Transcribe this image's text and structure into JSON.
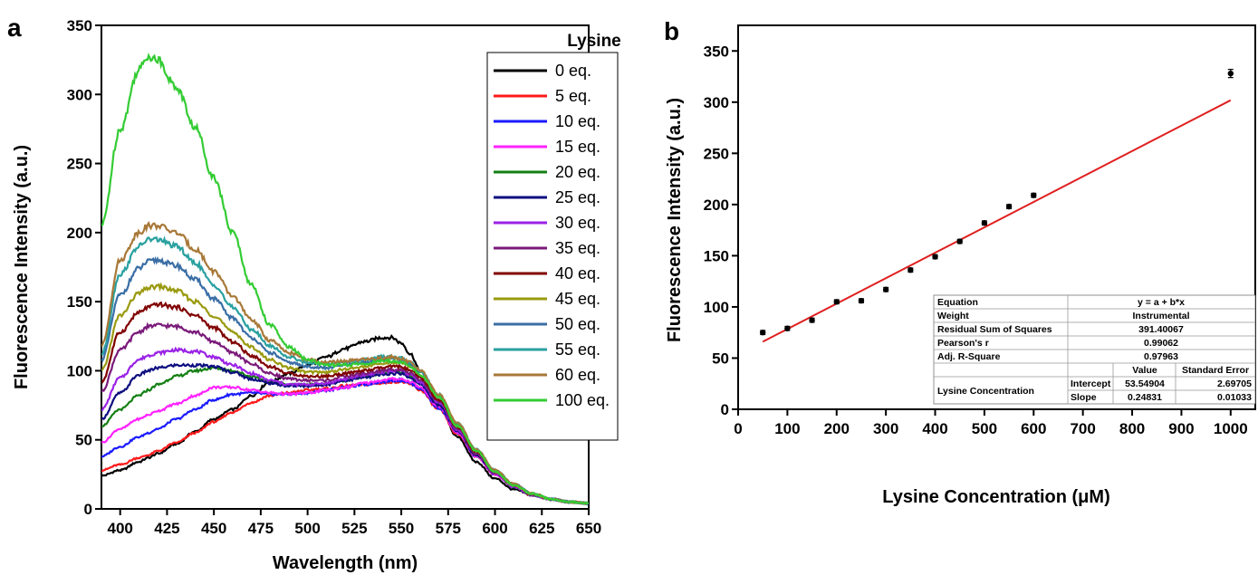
{
  "panels": {
    "a": {
      "letter": "a"
    },
    "b": {
      "letter": "b"
    }
  },
  "chart_data": [
    {
      "type": "line",
      "panel": "a",
      "title": "",
      "xlabel": "Wavelength (nm)",
      "ylabel": "Fluorescence Intensity (a.u.)",
      "xlim": [
        390,
        650
      ],
      "ylim": [
        0,
        350
      ],
      "xticks": [
        400,
        425,
        450,
        475,
        500,
        525,
        550,
        575,
        600,
        625,
        650
      ],
      "yticks": [
        0,
        50,
        100,
        150,
        200,
        250,
        300,
        350
      ],
      "legend_title": "Lysine",
      "legend_position": "top-right",
      "x": [
        390,
        400,
        410,
        415,
        420,
        430,
        440,
        450,
        460,
        470,
        480,
        490,
        500,
        510,
        520,
        530,
        540,
        545,
        550,
        555,
        560,
        570,
        580,
        590,
        600,
        610,
        620,
        630,
        640,
        650
      ],
      "series": [
        {
          "name": "0 eq.",
          "color": "#000000",
          "values": [
            24,
            28,
            34,
            37,
            40,
            47,
            56,
            65,
            72,
            82,
            92,
            98,
            104,
            110,
            116,
            121,
            124,
            124,
            120,
            112,
            100,
            76,
            52,
            34,
            22,
            14,
            10,
            7,
            5,
            4
          ]
        },
        {
          "name": "5 eq.",
          "color": "#ff1a1a",
          "values": [
            28,
            32,
            37,
            39,
            42,
            48,
            55,
            63,
            70,
            77,
            82,
            84,
            86,
            87,
            89,
            90,
            91,
            92,
            92,
            90,
            86,
            72,
            54,
            38,
            25,
            16,
            10,
            7,
            5,
            4
          ]
        },
        {
          "name": "10 eq.",
          "color": "#1a1aff",
          "values": [
            38,
            45,
            52,
            55,
            58,
            65,
            72,
            79,
            83,
            84,
            83,
            83,
            84,
            86,
            88,
            90,
            92,
            93,
            93,
            91,
            87,
            73,
            55,
            38,
            25,
            16,
            10,
            7,
            5,
            4
          ]
        },
        {
          "name": "15 eq.",
          "color": "#ff22ff",
          "values": [
            48,
            58,
            65,
            68,
            71,
            76,
            82,
            88,
            88,
            86,
            84,
            83,
            84,
            86,
            88,
            91,
            93,
            94,
            94,
            92,
            88,
            74,
            55,
            38,
            25,
            16,
            10,
            7,
            5,
            4
          ]
        },
        {
          "name": "20 eq.",
          "color": "#138013",
          "values": [
            60,
            72,
            82,
            86,
            90,
            96,
            100,
            102,
            100,
            96,
            92,
            90,
            90,
            91,
            93,
            96,
            98,
            99,
            99,
            96,
            91,
            76,
            57,
            39,
            26,
            16,
            10,
            7,
            5,
            4
          ]
        },
        {
          "name": "25 eq.",
          "color": "#0d0d80",
          "values": [
            65,
            84,
            97,
            100,
            102,
            104,
            104,
            103,
            99,
            94,
            91,
            89,
            89,
            90,
            93,
            95,
            97,
            98,
            98,
            95,
            90,
            75,
            56,
            39,
            26,
            16,
            10,
            7,
            5,
            4
          ]
        },
        {
          "name": "30 eq.",
          "color": "#9a22e6",
          "values": [
            72,
            95,
            108,
            111,
            113,
            115,
            114,
            110,
            104,
            98,
            93,
            90,
            90,
            91,
            94,
            97,
            99,
            100,
            100,
            97,
            92,
            77,
            57,
            40,
            26,
            16,
            10,
            7,
            5,
            4
          ]
        },
        {
          "name": "35 eq.",
          "color": "#7a1a7a",
          "values": [
            85,
            115,
            128,
            132,
            133,
            132,
            128,
            121,
            113,
            105,
            98,
            94,
            93,
            93,
            96,
            98,
            100,
            101,
            101,
            98,
            93,
            78,
            58,
            40,
            26,
            17,
            10,
            7,
            5,
            4
          ]
        },
        {
          "name": "40 eq.",
          "color": "#800000",
          "values": [
            92,
            128,
            142,
            146,
            148,
            146,
            140,
            131,
            121,
            111,
            103,
            98,
            96,
            96,
            98,
            100,
            102,
            103,
            103,
            100,
            95,
            79,
            59,
            41,
            27,
            17,
            11,
            7,
            5,
            4
          ]
        },
        {
          "name": "45 eq.",
          "color": "#9a9a10",
          "values": [
            100,
            140,
            156,
            160,
            161,
            158,
            150,
            140,
            128,
            117,
            108,
            102,
            99,
            99,
            101,
            103,
            105,
            106,
            106,
            103,
            97,
            81,
            60,
            42,
            27,
            17,
            11,
            7,
            5,
            4
          ]
        },
        {
          "name": "50 eq.",
          "color": "#3a6ea5",
          "values": [
            108,
            155,
            174,
            179,
            180,
            176,
            166,
            152,
            138,
            124,
            113,
            106,
            103,
            102,
            104,
            106,
            108,
            109,
            108,
            105,
            99,
            82,
            61,
            43,
            28,
            18,
            11,
            7,
            5,
            4
          ]
        },
        {
          "name": "55 eq.",
          "color": "#2aa0a0",
          "values": [
            112,
            170,
            190,
            195,
            195,
            190,
            178,
            162,
            146,
            130,
            118,
            110,
            106,
            105,
            106,
            108,
            110,
            110,
            109,
            106,
            100,
            83,
            62,
            43,
            28,
            18,
            11,
            7,
            5,
            4
          ]
        },
        {
          "name": "60 eq.",
          "color": "#a87838",
          "values": [
            118,
            180,
            200,
            205,
            205,
            200,
            188,
            172,
            154,
            137,
            122,
            113,
            108,
            106,
            107,
            108,
            109,
            110,
            109,
            106,
            100,
            83,
            62,
            43,
            28,
            18,
            11,
            7,
            5,
            4
          ]
        },
        {
          "name": "100 eq.",
          "color": "#33cc33",
          "values": [
            205,
            275,
            318,
            328,
            325,
            305,
            276,
            240,
            200,
            162,
            133,
            117,
            108,
            104,
            104,
            105,
            107,
            107,
            106,
            103,
            97,
            81,
            60,
            42,
            27,
            17,
            11,
            7,
            5,
            4
          ]
        }
      ]
    },
    {
      "type": "scatter",
      "panel": "b",
      "title": "",
      "xlabel": "Lysine Concentration (μM)",
      "ylabel": "Fluorescence Intensity (a.u.)",
      "xlim": [
        0,
        1050
      ],
      "ylim": [
        0,
        375
      ],
      "xticks": [
        0,
        100,
        200,
        300,
        400,
        500,
        600,
        700,
        800,
        900,
        1000
      ],
      "yticks": [
        0,
        50,
        100,
        150,
        200,
        250,
        300,
        350
      ],
      "points": {
        "x": [
          50,
          100,
          150,
          200,
          250,
          300,
          350,
          400,
          450,
          500,
          550,
          600,
          1000
        ],
        "y": [
          75,
          79,
          87,
          105,
          106,
          117,
          136,
          149,
          164,
          182,
          198,
          209,
          328
        ],
        "error": [
          2,
          2,
          2,
          2,
          2,
          2,
          2,
          2,
          2,
          2,
          2,
          2,
          4
        ]
      },
      "fit": {
        "intercept": 53.54904,
        "slope": 0.24831,
        "x_range": [
          50,
          1000
        ],
        "color": "#e02020"
      },
      "stats_table": {
        "equation_label": "Equation",
        "equation_value": "y = a + b*x",
        "weight_label": "Weight",
        "weight_value": "Instrumental",
        "rss_label": "Residual Sum of Squares",
        "rss_value": "391.40067",
        "pearson_label": "Pearson's r",
        "pearson_value": "0.99062",
        "adjr_label": "Adj. R-Square",
        "adjr_value": "0.97963",
        "col_value": "Value",
        "col_se": "Standard Error",
        "row_group": "Lysine Concentration",
        "intercept_label": "Intercept",
        "intercept_value": "53.54904",
        "intercept_se": "2.69705",
        "slope_label": "Slope",
        "slope_value": "0.24831",
        "slope_se": "0.01033"
      }
    }
  ]
}
